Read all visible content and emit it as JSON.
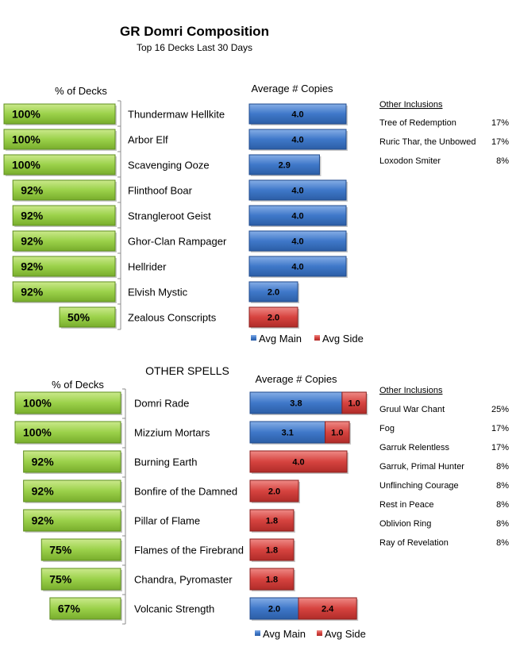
{
  "chart_data": [
    {
      "type": "bar",
      "title": "GR Domri Composition",
      "subtitle": "Top 16 Decks Last 30 Days",
      "left_header": "% of Decks",
      "right_header": "Average # Copies",
      "legend": [
        "Avg Main",
        "Avg Side"
      ],
      "categories": [
        "Thundermaw Hellkite",
        "Arbor Elf",
        "Scavenging Ooze",
        "Flinthoof Boar",
        "Strangleroot Geist",
        "Ghor-Clan Rampager",
        "Hellrider",
        "Elvish Mystic",
        "Zealous Conscripts"
      ],
      "pct_labels": [
        "100%",
        "100%",
        "100%",
        "92%",
        "92%",
        "92%",
        "92%",
        "92%",
        "50%"
      ],
      "pct_values": [
        100,
        100,
        100,
        92,
        92,
        92,
        92,
        92,
        50
      ],
      "series": [
        {
          "name": "Avg Main",
          "values": [
            4.0,
            4.0,
            2.9,
            4.0,
            4.0,
            4.0,
            4.0,
            2.0,
            0
          ],
          "labels": [
            "4.0",
            "4.0",
            "2.9",
            "4.0",
            "4.0",
            "4.0",
            "4.0",
            "2.0",
            ""
          ]
        },
        {
          "name": "Avg Side",
          "values": [
            0,
            0,
            0,
            0,
            0,
            0,
            0,
            0,
            2.0
          ],
          "labels": [
            "",
            "",
            "",
            "",
            "",
            "",
            "",
            "",
            "2.0"
          ]
        }
      ],
      "other_inclusions": {
        "header": "Other Inclusions",
        "items": [
          {
            "name": "Tree of Redemption",
            "pct": "17%"
          },
          {
            "name": "Ruric Thar, the Unbowed",
            "pct": "17%"
          },
          {
            "name": "Loxodon Smiter",
            "pct": "8%"
          }
        ]
      }
    },
    {
      "type": "bar",
      "title": "OTHER SPELLS",
      "left_header": "% of Decks",
      "right_header": "Average # Copies",
      "legend": [
        "Avg Main",
        "Avg Side"
      ],
      "categories": [
        "Domri Rade",
        "Mizzium Mortars",
        "Burning Earth",
        "Bonfire of the Damned",
        "Pillar of Flame",
        "Flames of the Firebrand",
        "Chandra, Pyromaster",
        "Volcanic Strength"
      ],
      "pct_labels": [
        "100%",
        "100%",
        "92%",
        "92%",
        "92%",
        "75%",
        "75%",
        "67%"
      ],
      "pct_values": [
        100,
        100,
        92,
        92,
        92,
        75,
        75,
        67
      ],
      "series": [
        {
          "name": "Avg Main",
          "values": [
            3.8,
            3.1,
            0,
            0,
            0,
            0,
            0,
            2.0
          ],
          "labels": [
            "3.8",
            "3.1",
            "",
            "",
            "",
            "",
            "",
            "2.0"
          ]
        },
        {
          "name": "Avg Side",
          "values": [
            1.0,
            1.0,
            4.0,
            2.0,
            1.8,
            1.8,
            1.8,
            2.4
          ],
          "labels": [
            "1.0",
            "1.0",
            "4.0",
            "2.0",
            "1.8",
            "1.8",
            "1.8",
            "2.4"
          ]
        }
      ],
      "other_inclusions": {
        "header": "Other Inclusions",
        "items": [
          {
            "name": "Gruul War Chant",
            "pct": "25%"
          },
          {
            "name": "Fog",
            "pct": "17%"
          },
          {
            "name": "Garruk Relentless",
            "pct": "17%"
          },
          {
            "name": "Garruk, Primal Hunter",
            "pct": "8%"
          },
          {
            "name": "Unflinching Courage",
            "pct": "8%"
          },
          {
            "name": "Rest in Peace",
            "pct": "8%"
          },
          {
            "name": "Oblivion Ring",
            "pct": "8%"
          },
          {
            "name": "Ray of Revelation",
            "pct": "8%"
          }
        ]
      }
    }
  ],
  "colors": {
    "green": "#9bd14a",
    "green_dark": "#5f8f1f",
    "blue": "#3f78c9",
    "blue_dark": "#1f4a8c",
    "red": "#d6433f",
    "red_dark": "#8c1e1c"
  }
}
